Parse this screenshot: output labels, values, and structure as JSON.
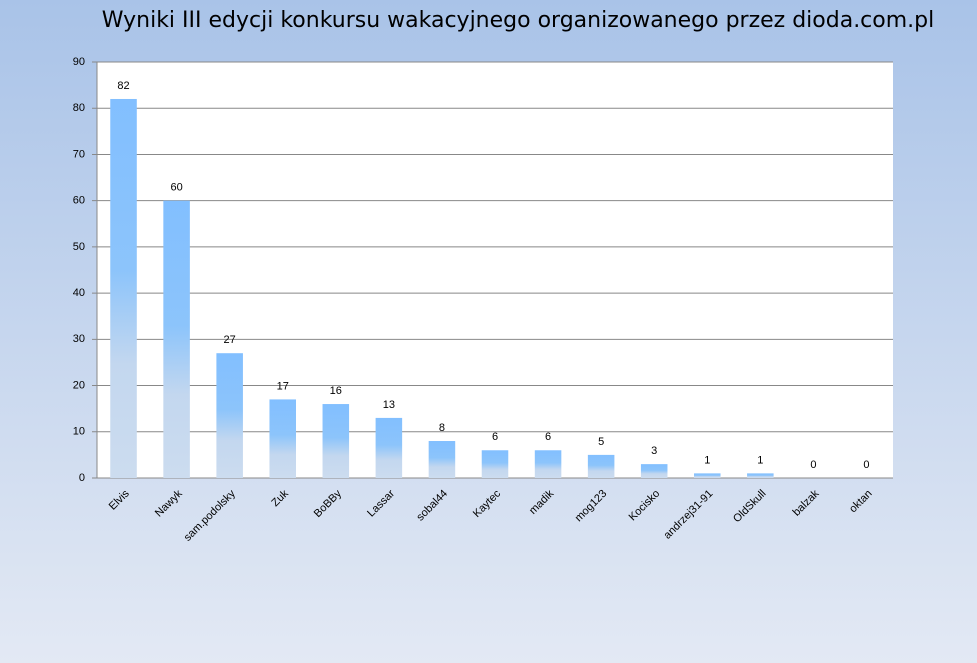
{
  "chart_data": {
    "type": "bar",
    "title": "Wyniki III edycji konkursu wakacyjnego organizowanego przez dioda.com.pl",
    "categories": [
      "Elvis",
      "Nawyk",
      "sam.podolsky",
      "Zuk",
      "BoBBy",
      "Lassar",
      "sobal44",
      "Kaytec",
      "madik",
      "mog123",
      "Kocisko",
      "andrzej31-91",
      "OldSkull",
      "balzak",
      "oktan"
    ],
    "values": [
      82,
      60,
      27,
      17,
      16,
      13,
      8,
      6,
      6,
      5,
      3,
      1,
      1,
      0,
      0
    ],
    "color": "#7fbfff",
    "ylim": [
      0,
      90
    ],
    "yticks": [
      0,
      10,
      20,
      30,
      40,
      50,
      60,
      70,
      80,
      90
    ],
    "grid": true
  }
}
